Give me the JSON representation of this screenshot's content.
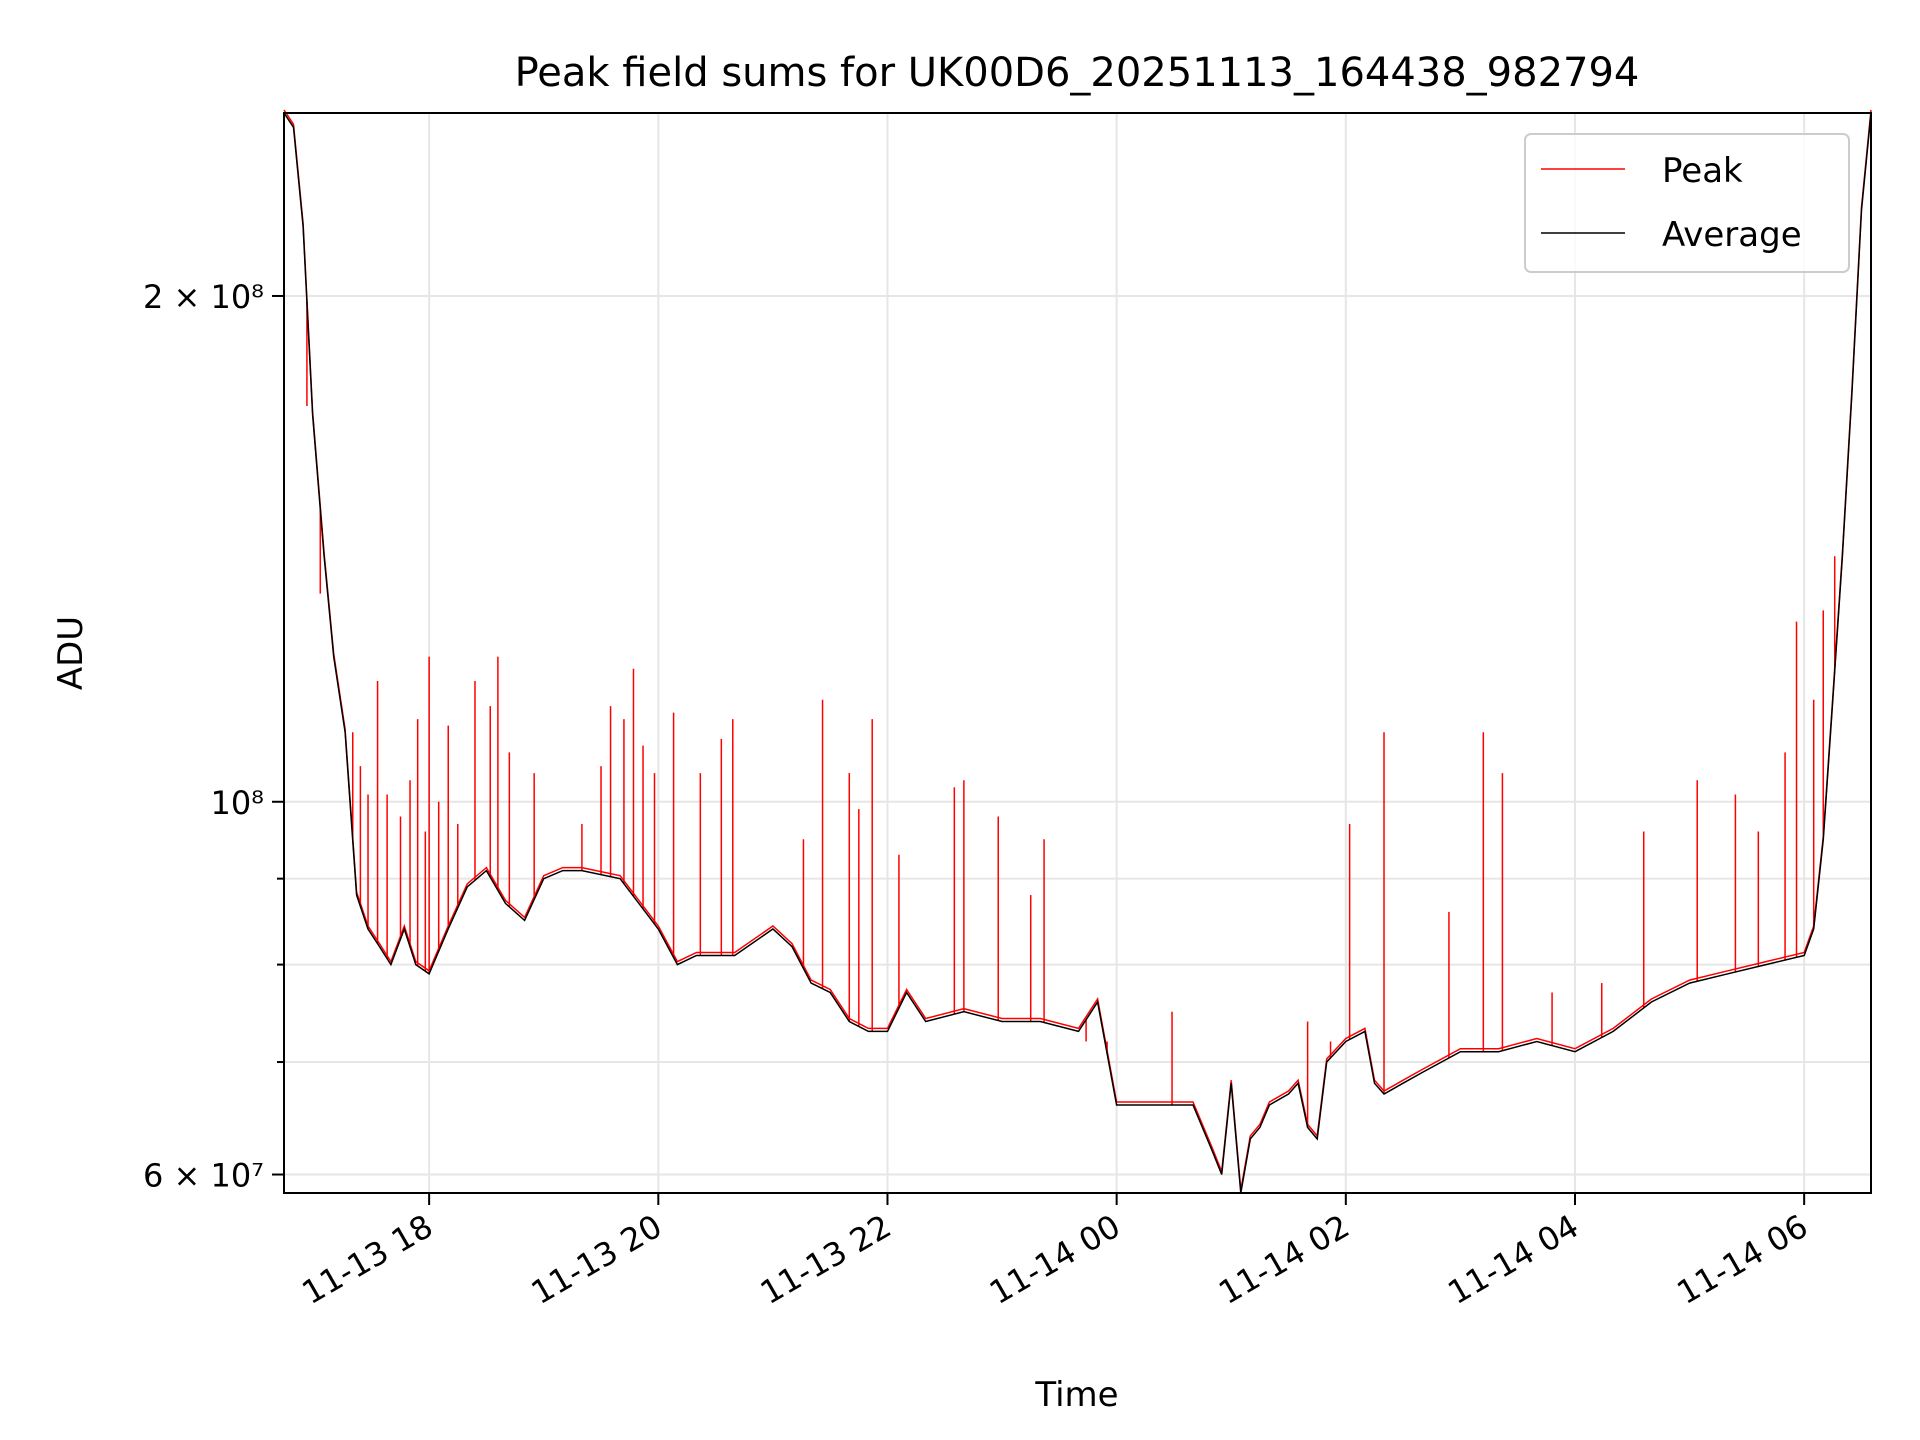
{
  "chart_data": {
    "type": "line",
    "title": "Peak field sums for UK00D6_20251113_164438_982794",
    "xlabel": "Time",
    "ylabel": "ADU",
    "y_scale": "log",
    "xlim": [
      "2025-11-13 16:44",
      "2025-11-14 06:35"
    ],
    "ylim": [
      58500000,
      257000000
    ],
    "grid": true,
    "legend_position": "top-right",
    "x_ticks": [
      {
        "value": "2025-11-13 18:00",
        "label": "11-13 18"
      },
      {
        "value": "2025-11-13 20:00",
        "label": "11-13 20"
      },
      {
        "value": "2025-11-13 22:00",
        "label": "11-13 22"
      },
      {
        "value": "2025-11-14 00:00",
        "label": "11-14 00"
      },
      {
        "value": "2025-11-14 02:00",
        "label": "11-14 02"
      },
      {
        "value": "2025-11-14 04:00",
        "label": "11-14 04"
      },
      {
        "value": "2025-11-14 06:00",
        "label": "11-14 06"
      }
    ],
    "y_ticks": [
      {
        "value": 60000000,
        "label": "6 × 10⁷",
        "labeled": true
      },
      {
        "value": 70000000,
        "label": "",
        "labeled": false
      },
      {
        "value": 80000000,
        "label": "",
        "labeled": false
      },
      {
        "value": 90000000,
        "label": "",
        "labeled": false
      },
      {
        "value": 100000000,
        "label": "10⁸",
        "labeled": true
      },
      {
        "value": 200000000,
        "label": "2 × 10⁸",
        "labeled": true
      }
    ],
    "series": [
      {
        "name": "Average",
        "color": "#000000",
        "x": [
          "2025-11-13 16:44",
          "2025-11-13 16:49",
          "2025-11-13 16:54",
          "2025-11-13 16:59",
          "2025-11-13 17:05",
          "2025-11-13 17:10",
          "2025-11-13 17:16",
          "2025-11-13 17:22",
          "2025-11-13 17:28",
          "2025-11-13 17:34",
          "2025-11-13 17:40",
          "2025-11-13 17:47",
          "2025-11-13 17:53",
          "2025-11-13 18:00",
          "2025-11-13 18:10",
          "2025-11-13 18:20",
          "2025-11-13 18:30",
          "2025-11-13 18:40",
          "2025-11-13 18:50",
          "2025-11-13 19:00",
          "2025-11-13 19:10",
          "2025-11-13 19:20",
          "2025-11-13 19:40",
          "2025-11-13 20:00",
          "2025-11-13 20:10",
          "2025-11-13 20:20",
          "2025-11-13 20:40",
          "2025-11-13 21:00",
          "2025-11-13 21:10",
          "2025-11-13 21:20",
          "2025-11-13 21:30",
          "2025-11-13 21:40",
          "2025-11-13 21:50",
          "2025-11-13 22:00",
          "2025-11-13 22:10",
          "2025-11-13 22:20",
          "2025-11-13 22:40",
          "2025-11-13 23:00",
          "2025-11-13 23:20",
          "2025-11-13 23:40",
          "2025-11-13 23:50",
          "2025-11-14 00:00",
          "2025-11-14 00:20",
          "2025-11-14 00:40",
          "2025-11-14 00:50",
          "2025-11-14 00:55",
          "2025-11-14 01:00",
          "2025-11-14 01:05",
          "2025-11-14 01:10",
          "2025-11-14 01:15",
          "2025-11-14 01:20",
          "2025-11-14 01:30",
          "2025-11-14 01:35",
          "2025-11-14 01:40",
          "2025-11-14 01:45",
          "2025-11-14 01:50",
          "2025-11-14 02:00",
          "2025-11-14 02:10",
          "2025-11-14 02:15",
          "2025-11-14 02:20",
          "2025-11-14 02:30",
          "2025-11-14 02:40",
          "2025-11-14 03:00",
          "2025-11-14 03:20",
          "2025-11-14 03:40",
          "2025-11-14 04:00",
          "2025-11-14 04:20",
          "2025-11-14 04:40",
          "2025-11-14 05:00",
          "2025-11-14 05:20",
          "2025-11-14 05:40",
          "2025-11-14 06:00",
          "2025-11-14 06:05",
          "2025-11-14 06:10",
          "2025-11-14 06:15",
          "2025-11-14 06:20",
          "2025-11-14 06:25",
          "2025-11-14 06:30",
          "2025-11-14 06:35"
        ],
        "values": [
          257000000,
          252000000,
          220000000,
          170000000,
          140000000,
          122000000,
          110000000,
          88000000,
          84000000,
          82000000,
          80000000,
          84000000,
          80000000,
          79000000,
          84000000,
          89000000,
          91000000,
          87000000,
          85000000,
          90000000,
          91000000,
          91000000,
          90000000,
          84000000,
          80000000,
          81000000,
          81000000,
          84000000,
          82000000,
          78000000,
          77000000,
          74000000,
          73000000,
          73000000,
          77000000,
          74000000,
          75000000,
          74000000,
          74000000,
          73000000,
          76000000,
          66000000,
          66000000,
          66000000,
          62000000,
          60000000,
          68000000,
          58500000,
          63000000,
          64000000,
          66000000,
          67000000,
          68000000,
          64000000,
          63000000,
          70000000,
          72000000,
          73000000,
          68000000,
          67000000,
          68000000,
          69000000,
          71000000,
          71000000,
          72000000,
          71000000,
          73000000,
          76000000,
          78000000,
          79000000,
          80000000,
          81000000,
          84000000,
          95000000,
          115000000,
          140000000,
          175000000,
          225000000,
          257000000
        ]
      },
      {
        "name": "Peak",
        "color": "#ff0000",
        "spikes": [
          {
            "x": "2025-11-13 16:56",
            "y": 172000000
          },
          {
            "x": "2025-11-13 17:03",
            "y": 133000000
          },
          {
            "x": "2025-11-13 17:20",
            "y": 110000000
          },
          {
            "x": "2025-11-13 17:24",
            "y": 105000000
          },
          {
            "x": "2025-11-13 17:28",
            "y": 101000000
          },
          {
            "x": "2025-11-13 17:33",
            "y": 118000000
          },
          {
            "x": "2025-11-13 17:38",
            "y": 101000000
          },
          {
            "x": "2025-11-13 17:45",
            "y": 98000000
          },
          {
            "x": "2025-11-13 17:50",
            "y": 103000000
          },
          {
            "x": "2025-11-13 17:54",
            "y": 112000000
          },
          {
            "x": "2025-11-13 17:58",
            "y": 96000000
          },
          {
            "x": "2025-11-13 18:00",
            "y": 122000000
          },
          {
            "x": "2025-11-13 18:05",
            "y": 100000000
          },
          {
            "x": "2025-11-13 18:10",
            "y": 111000000
          },
          {
            "x": "2025-11-13 18:15",
            "y": 97000000
          },
          {
            "x": "2025-11-13 18:24",
            "y": 118000000
          },
          {
            "x": "2025-11-13 18:32",
            "y": 114000000
          },
          {
            "x": "2025-11-13 18:36",
            "y": 122000000
          },
          {
            "x": "2025-11-13 18:42",
            "y": 107000000
          },
          {
            "x": "2025-11-13 18:55",
            "y": 104000000
          },
          {
            "x": "2025-11-13 19:20",
            "y": 97000000
          },
          {
            "x": "2025-11-13 19:30",
            "y": 105000000
          },
          {
            "x": "2025-11-13 19:35",
            "y": 114000000
          },
          {
            "x": "2025-11-13 19:42",
            "y": 112000000
          },
          {
            "x": "2025-11-13 19:47",
            "y": 120000000
          },
          {
            "x": "2025-11-13 19:52",
            "y": 108000000
          },
          {
            "x": "2025-11-13 19:58",
            "y": 104000000
          },
          {
            "x": "2025-11-13 20:08",
            "y": 113000000
          },
          {
            "x": "2025-11-13 20:22",
            "y": 104000000
          },
          {
            "x": "2025-11-13 20:33",
            "y": 109000000
          },
          {
            "x": "2025-11-13 20:39",
            "y": 112000000
          },
          {
            "x": "2025-11-13 21:16",
            "y": 95000000
          },
          {
            "x": "2025-11-13 21:26",
            "y": 115000000
          },
          {
            "x": "2025-11-13 21:40",
            "y": 104000000
          },
          {
            "x": "2025-11-13 21:45",
            "y": 99000000
          },
          {
            "x": "2025-11-13 21:52",
            "y": 112000000
          },
          {
            "x": "2025-11-13 22:06",
            "y": 93000000
          },
          {
            "x": "2025-11-13 22:35",
            "y": 102000000
          },
          {
            "x": "2025-11-13 22:40",
            "y": 103000000
          },
          {
            "x": "2025-11-13 22:58",
            "y": 98000000
          },
          {
            "x": "2025-11-13 23:15",
            "y": 88000000
          },
          {
            "x": "2025-11-13 23:22",
            "y": 95000000
          },
          {
            "x": "2025-11-13 23:44",
            "y": 72000000
          },
          {
            "x": "2025-11-13 23:55",
            "y": 72000000
          },
          {
            "x": "2025-11-14 00:29",
            "y": 75000000
          },
          {
            "x": "2025-11-14 01:40",
            "y": 74000000
          },
          {
            "x": "2025-11-14 01:52",
            "y": 72000000
          },
          {
            "x": "2025-11-14 02:02",
            "y": 97000000
          },
          {
            "x": "2025-11-14 02:20",
            "y": 110000000
          },
          {
            "x": "2025-11-14 02:54",
            "y": 86000000
          },
          {
            "x": "2025-11-14 03:12",
            "y": 110000000
          },
          {
            "x": "2025-11-14 03:22",
            "y": 104000000
          },
          {
            "x": "2025-11-14 03:48",
            "y": 77000000
          },
          {
            "x": "2025-11-14 04:14",
            "y": 78000000
          },
          {
            "x": "2025-11-14 04:36",
            "y": 96000000
          },
          {
            "x": "2025-11-14 05:04",
            "y": 103000000
          },
          {
            "x": "2025-11-14 05:24",
            "y": 101000000
          },
          {
            "x": "2025-11-14 05:36",
            "y": 96000000
          },
          {
            "x": "2025-11-14 05:50",
            "y": 107000000
          },
          {
            "x": "2025-11-14 05:56",
            "y": 128000000
          },
          {
            "x": "2025-11-14 06:05",
            "y": 115000000
          },
          {
            "x": "2025-11-14 06:10",
            "y": 130000000
          },
          {
            "x": "2025-11-14 06:16",
            "y": 140000000
          }
        ]
      }
    ]
  }
}
